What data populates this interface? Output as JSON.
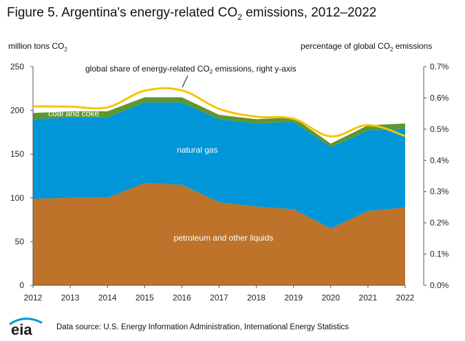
{
  "title_parts": {
    "prefix": "Figure 5. Argentina's energy-related CO",
    "sub": "2",
    "suffix": " emissions, 2012–2022"
  },
  "left_axis_title": {
    "prefix": "million tons CO",
    "sub": "2"
  },
  "right_axis_title": {
    "prefix": "percentage of global CO",
    "sub": "2",
    "suffix": " emissions"
  },
  "source_note": "Data source: U.S. Energy Information Administration, International Energy Statistics",
  "logo_text": "eia",
  "chart_data": {
    "type": "area",
    "title": "Figure 5. Argentina's energy-related CO2 emissions, 2012–2022",
    "xlabel": "",
    "ylabel": "million tons CO2",
    "y2label": "percentage of global CO2 emissions",
    "x": [
      2012,
      2013,
      2014,
      2015,
      2016,
      2017,
      2018,
      2019,
      2020,
      2021,
      2022
    ],
    "x_tick_labels": [
      "2012",
      "2013",
      "2014",
      "2015",
      "2016",
      "2017",
      "2018",
      "2019",
      "2020",
      "2021",
      "2022"
    ],
    "ylim": [
      0,
      250
    ],
    "y_ticks": [
      "0",
      "50",
      "100",
      "150",
      "200",
      "250"
    ],
    "y2lim": [
      0,
      0.7
    ],
    "y2_ticks": [
      "0.0%",
      "0.1%",
      "0.2%",
      "0.3%",
      "0.4%",
      "0.5%",
      "0.6%",
      "0.7%"
    ],
    "series": [
      {
        "name": "petroleum and other liquids",
        "stack": true,
        "color": "#bd732a",
        "values": [
          99,
          100,
          100,
          117,
          115,
          95,
          90,
          87,
          65,
          85,
          89
        ]
      },
      {
        "name": "natural gas",
        "stack": true,
        "color": "#0096d7",
        "values": [
          91,
          92,
          92,
          92,
          94,
          95,
          95,
          100,
          93,
          92,
          90
        ]
      },
      {
        "name": "coal and coke",
        "stack": true,
        "color": "#5d9732",
        "values": [
          7,
          7,
          7,
          6,
          6,
          5,
          5,
          5,
          4,
          6,
          6
        ]
      },
      {
        "name": "global share of energy-related CO2 emissions, right y-axis",
        "axis": "right",
        "type": "line",
        "color": "#f5c400",
        "values": [
          0.573,
          0.572,
          0.57,
          0.623,
          0.624,
          0.565,
          0.54,
          0.533,
          0.477,
          0.513,
          0.478
        ]
      }
    ],
    "annotations": {
      "petroleum_label": "petroleum and other liquids",
      "gas_label": "natural gas",
      "coal_label": "coal and coke",
      "line_label": {
        "prefix": "global share of energy-related CO",
        "sub": "2",
        "suffix": " emissions, right y-axis"
      }
    },
    "colors": {
      "petroleum": "#bd732a",
      "gas": "#0096d7",
      "coal": "#5d9732",
      "line": "#f5c400",
      "axis": "#555555"
    }
  }
}
